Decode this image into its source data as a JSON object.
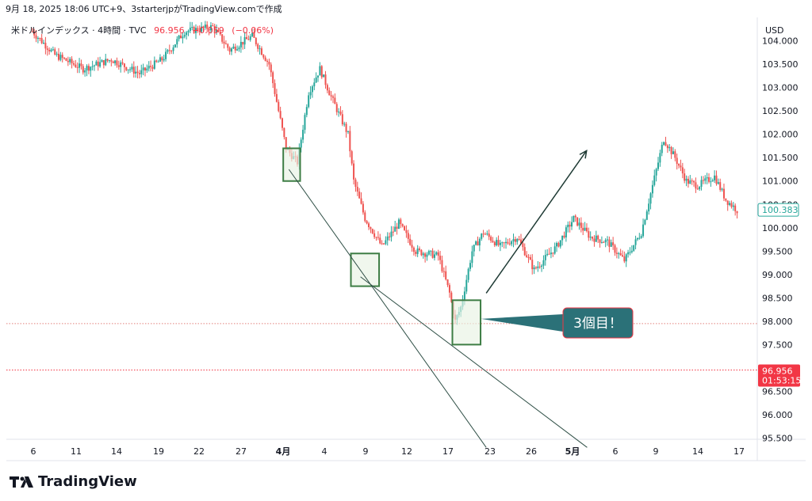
{
  "caption": "9月 18, 2025 18:06 UTC+9、3starterjpがTradingView.comで作成",
  "legend": {
    "symbol": "米ドルインデックス · 4時間 · TVC",
    "price": "96.956",
    "change": "−0.059",
    "change_pct": "(−0.06%)"
  },
  "currency": "USD",
  "brand": "TradingView",
  "callout": "3個目！",
  "colors": {
    "up": "#26a69a",
    "down": "#ef5350",
    "box_border": "#3d7d44",
    "box_fill": "#e8f2e4",
    "callout_bg": "#2b7178",
    "callout_border": "#f23645",
    "last_price_bg": "#f23645",
    "current_price_tag_border": "#26a69a"
  },
  "chart_data": {
    "type": "candlestick",
    "title": "米ドルインデックス · 4時間 · TVC",
    "ylim": [
      95.3,
      104.5
    ],
    "yticks": [
      "104.000",
      "103.500",
      "103.000",
      "102.500",
      "102.000",
      "101.500",
      "101.000",
      "100.500",
      "100.000",
      "99.500",
      "99.000",
      "98.500",
      "98.000",
      "97.500",
      "97.000",
      "96.500",
      "96.000",
      "95.500"
    ],
    "xticks": [
      "6",
      "11",
      "14",
      "19",
      "22",
      "27",
      "4月",
      "4",
      "9",
      "12",
      "17",
      "23",
      "26",
      "5月",
      "6",
      "9",
      "14",
      "17"
    ],
    "close_path": [
      [
        0,
        104.2
      ],
      [
        4,
        103.7
      ],
      [
        9,
        103.4
      ],
      [
        14,
        103.6
      ],
      [
        19,
        103.3
      ],
      [
        23,
        103.6
      ],
      [
        27,
        104.2
      ],
      [
        32,
        104.3
      ],
      [
        35,
        103.8
      ],
      [
        39,
        104.1
      ],
      [
        42,
        103.5
      ],
      [
        45,
        101.7
      ],
      [
        47,
        101.4
      ],
      [
        49,
        102.9
      ],
      [
        51,
        103.4
      ],
      [
        53,
        102.8
      ],
      [
        56,
        102.0
      ],
      [
        57,
        101.0
      ],
      [
        59,
        100.2
      ],
      [
        62,
        99.6
      ],
      [
        65,
        100.1
      ],
      [
        68,
        99.5
      ],
      [
        72,
        99.4
      ],
      [
        74,
        98.6
      ],
      [
        75,
        98.0
      ],
      [
        76,
        98.3
      ],
      [
        78,
        99.5
      ],
      [
        80,
        99.9
      ],
      [
        83,
        99.6
      ],
      [
        86,
        99.8
      ],
      [
        89,
        99.1
      ],
      [
        93,
        99.6
      ],
      [
        96,
        100.2
      ],
      [
        99,
        99.8
      ],
      [
        102,
        99.7
      ],
      [
        105,
        99.3
      ],
      [
        108,
        99.9
      ],
      [
        110,
        100.9
      ],
      [
        112,
        101.9
      ],
      [
        114,
        101.5
      ],
      [
        116,
        101.0
      ],
      [
        118,
        100.9
      ],
      [
        121,
        101.1
      ],
      [
        123,
        100.6
      ],
      [
        125,
        100.38
      ]
    ],
    "annotations": {
      "boxes": [
        {
          "t0": 44.5,
          "t1": 47.5,
          "top": 101.7,
          "bottom": 101.0
        },
        {
          "t0": 56.5,
          "t1": 61.5,
          "top": 99.45,
          "bottom": 98.75
        },
        {
          "t0": 74.5,
          "t1": 79.5,
          "top": 98.45,
          "bottom": 97.5
        }
      ],
      "lines": [
        {
          "t0": 45.5,
          "p0": 101.25,
          "t1": 80.5,
          "p1": 95.3
        },
        {
          "t0": 58.2,
          "p0": 98.95,
          "t1": 98.4,
          "p1": 95.3
        }
      ],
      "arrow": {
        "t0": 80.5,
        "p0": 98.6,
        "t1": 98.3,
        "p1": 101.65
      },
      "callout_anchor": {
        "t": 79.6,
        "p": 98.05
      },
      "hlines": [
        {
          "price": 97.95,
          "color": "#e2817c"
        },
        {
          "price": 96.956,
          "color": "#f23645"
        }
      ]
    },
    "last_price": "100.383",
    "current_price": "96.956",
    "countdown": "01:53:15"
  }
}
